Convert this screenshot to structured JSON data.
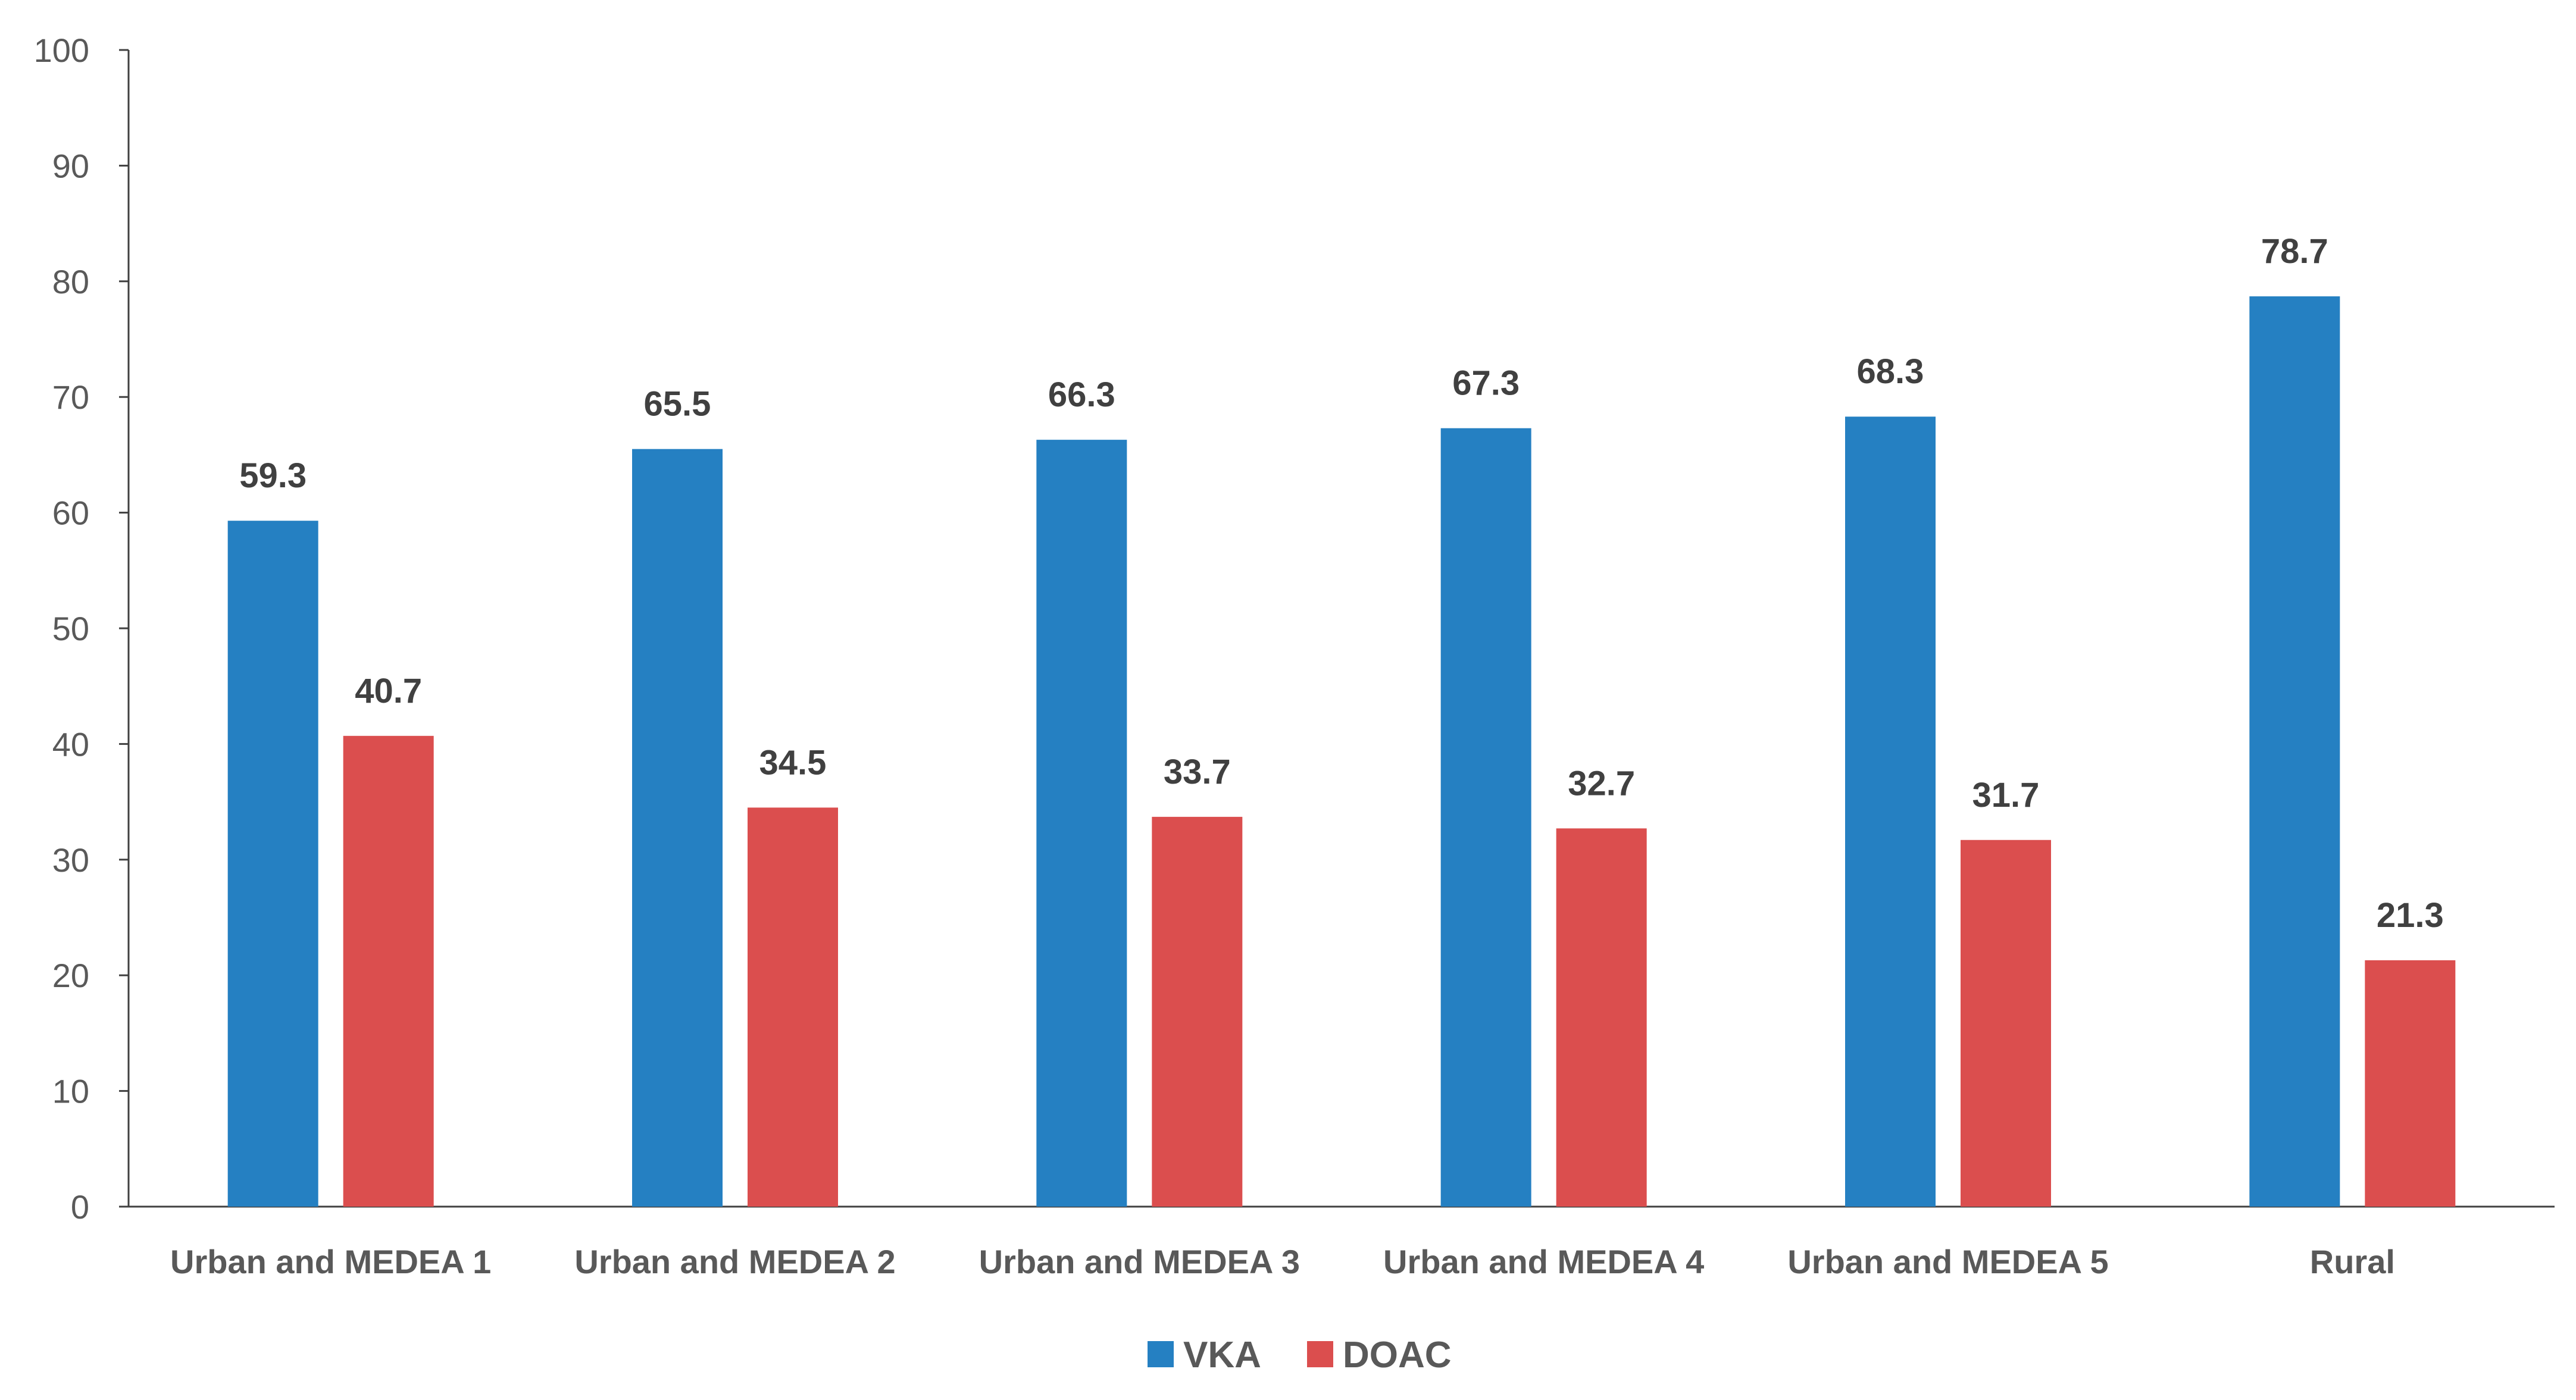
{
  "chart_data": {
    "type": "bar",
    "title": "",
    "xlabel": "",
    "ylabel": "",
    "ylim": [
      0,
      100
    ],
    "y_ticks": [
      "0",
      "10",
      "20",
      "30",
      "40",
      "50",
      "60",
      "70",
      "80",
      "90",
      "100"
    ],
    "grid": false,
    "legend_position": "bottom",
    "categories": [
      "Urban and MEDEA 1",
      "Urban and MEDEA 2",
      "Urban and MEDEA 3",
      "Urban and MEDEA 4",
      "Urban and MEDEA 5",
      "Rural"
    ],
    "series": [
      {
        "name": "VKA",
        "color": "#2580C2",
        "values": [
          59.3,
          65.5,
          66.3,
          67.3,
          68.3,
          78.7
        ],
        "labels": [
          "59.3",
          "65.5",
          "66.3",
          "67.3",
          "68.3",
          "78.7"
        ]
      },
      {
        "name": "DOAC",
        "color": "#DB4E4E",
        "values": [
          40.7,
          34.5,
          33.7,
          32.7,
          31.7,
          21.3
        ],
        "labels": [
          "40.7",
          "34.5",
          "33.7",
          "32.7",
          "31.7",
          "21.3"
        ]
      }
    ]
  }
}
